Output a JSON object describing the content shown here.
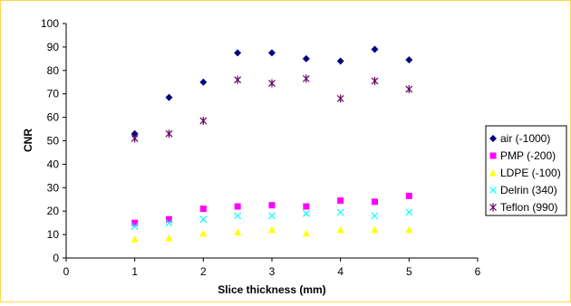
{
  "chart_data": {
    "type": "scatter",
    "title": "",
    "xlabel": "Slice thickness (mm)",
    "ylabel": "CNR",
    "xlim": [
      0,
      6
    ],
    "ylim": [
      0,
      100
    ],
    "x_ticks": [
      0,
      1,
      2,
      3,
      4,
      5,
      6
    ],
    "y_ticks": [
      0,
      10,
      20,
      30,
      40,
      50,
      60,
      70,
      80,
      90,
      100
    ],
    "grid": false,
    "legend_position": "right",
    "x": [
      1,
      1.5,
      2,
      2.5,
      3,
      3.5,
      4,
      4.5,
      5
    ],
    "series": [
      {
        "name": "air (-1000)",
        "marker": "diamond",
        "color": "#000080",
        "values": [
          53,
          68.5,
          75,
          87.5,
          87.5,
          85,
          84,
          89,
          84.5
        ]
      },
      {
        "name": "PMP (-200)",
        "marker": "square",
        "color": "#ff00ff",
        "values": [
          15,
          16.5,
          21,
          22,
          22.5,
          22,
          24.5,
          24,
          26.5
        ]
      },
      {
        "name": "LDPE (-100)",
        "marker": "triangle",
        "color": "#ffff00",
        "values": [
          8,
          8.5,
          10.5,
          11,
          12,
          10.5,
          12,
          12,
          12
        ]
      },
      {
        "name": "Delrin (340)",
        "marker": "x",
        "color": "#00ffff",
        "values": [
          13.5,
          15,
          16.5,
          18,
          18,
          19,
          19.5,
          18,
          19.5
        ]
      },
      {
        "name": "Teflon (990)",
        "marker": "star",
        "color": "#660066",
        "values": [
          51,
          53,
          58.5,
          76,
          74.5,
          76.5,
          68,
          75.5,
          72
        ]
      }
    ]
  }
}
